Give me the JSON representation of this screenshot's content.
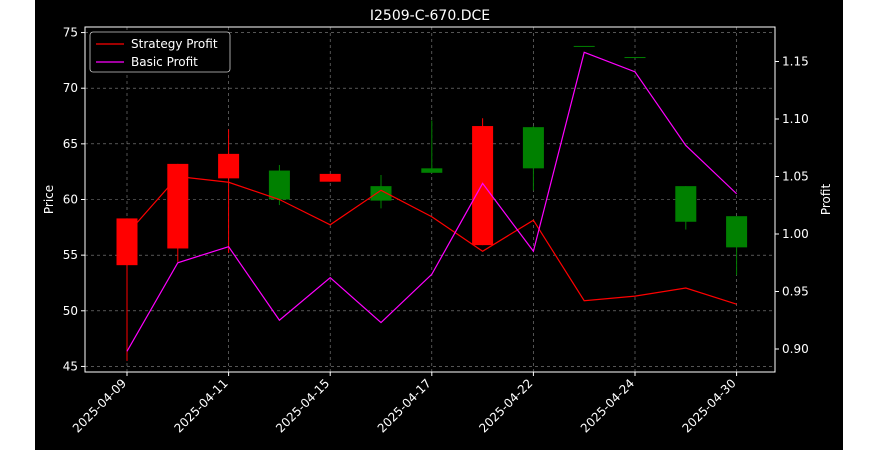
{
  "chart_data": {
    "type": "candlestick",
    "title": "I2509-C-670.DCE",
    "ylabel_left": "Price",
    "ylabel_right": "Profit",
    "ylim_left": [
      44.5,
      75.5
    ],
    "ylim_right": [
      0.88,
      1.18
    ],
    "yticks_left": [
      45,
      50,
      55,
      60,
      65,
      70,
      75
    ],
    "yticks_right": [
      0.9,
      0.95,
      1.0,
      1.05,
      1.1,
      1.15
    ],
    "ytick_labels_right": [
      "0.90",
      "0.95",
      "1.00",
      "1.05",
      "1.10",
      "1.15"
    ],
    "grid": true,
    "legend_position": "top-left",
    "x_labels": [
      "2025-04-09",
      "2025-04-11",
      "2025-04-15",
      "2025-04-17",
      "2025-04-22",
      "2025-04-24",
      "2025-04-30"
    ],
    "x_label_index": [
      0,
      2,
      4,
      6,
      8,
      10,
      12
    ],
    "up_color": "#008000",
    "down_color": "#ff0000",
    "candles": [
      {
        "open": 58.3,
        "high": 58.3,
        "low": 45.5,
        "close": 54.1
      },
      {
        "open": 63.2,
        "high": 63.2,
        "low": 54.4,
        "close": 55.6
      },
      {
        "open": 64.1,
        "high": 66.3,
        "low": 55.2,
        "close": 61.9
      },
      {
        "open": 60.0,
        "high": 63.1,
        "low": 59.5,
        "close": 62.6
      },
      {
        "open": 62.3,
        "high": 62.3,
        "low": 61.6,
        "close": 61.6
      },
      {
        "open": 59.9,
        "high": 62.2,
        "low": 59.2,
        "close": 61.2
      },
      {
        "open": 62.4,
        "high": 67.1,
        "low": 62.4,
        "close": 62.8
      },
      {
        "open": 66.6,
        "high": 67.3,
        "low": 55.9,
        "close": 55.9
      },
      {
        "open": 62.8,
        "high": 66.6,
        "low": 60.8,
        "close": 66.5
      },
      {
        "open": 73.8,
        "high": 73.8,
        "low": 73.8,
        "close": 73.8
      },
      {
        "open": 72.8,
        "high": 72.8,
        "low": 72.8,
        "close": 72.8
      },
      {
        "open": 58.0,
        "high": 61.2,
        "low": 57.3,
        "close": 61.2
      },
      {
        "open": 55.7,
        "high": 58.5,
        "low": 53.2,
        "close": 58.5
      }
    ],
    "series": [
      {
        "name": "Strategy Profit",
        "color": "#ff0000",
        "values": [
          1.0,
          1.05,
          1.045,
          1.03,
          1.008,
          1.038,
          1.015,
          0.985,
          1.012,
          0.942,
          0.946,
          0.953,
          0.939
        ]
      },
      {
        "name": "Basic Profit",
        "color": "#ff00ff",
        "values": [
          0.898,
          0.975,
          0.989,
          0.925,
          0.962,
          0.923,
          0.965,
          1.044,
          0.985,
          1.158,
          1.141,
          1.077,
          1.035
        ]
      }
    ]
  }
}
